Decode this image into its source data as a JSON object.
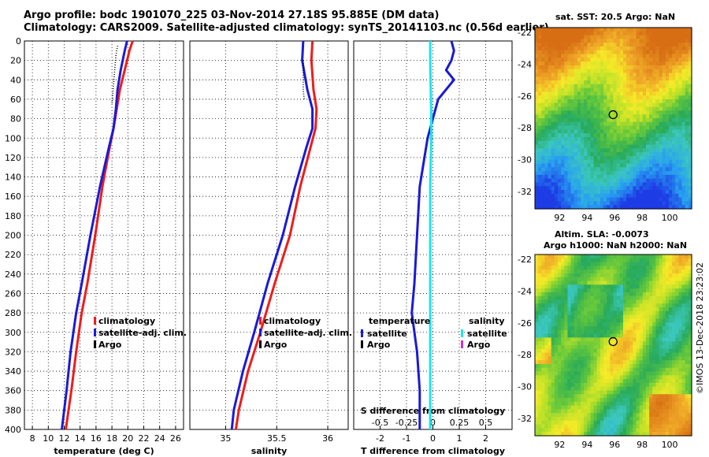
{
  "titles": {
    "line1": "Argo profile: bodc 1901070_225 03-Nov-2014 27.18S 95.885E (DM data)",
    "line2": "Climatology: CARS2009. Satellite-adjusted climatology: synTS_20141103.nc (0.56d earlier)"
  },
  "maps": {
    "sst_title": "sat. SST: 20.5 Argo: NaN",
    "sla_title1": "Altim. SLA: -0.0073",
    "sla_title2": "Argo h1000: NaN h2000: NaN"
  },
  "credit": "©IMOS 13-Dec-2018 23:23:02",
  "colors": {
    "climatology": "#ee1c1c",
    "satellite": "#1a1ad6",
    "argo": "#000000",
    "salinity_satellite": "#17e6ee",
    "salinity_argo": "#cc33cc"
  },
  "chart_data": [
    {
      "type": "line",
      "name": "temperature",
      "xlabel": "temperature (deg C)",
      "ylabel": "",
      "xlim": [
        7,
        27
      ],
      "ylim": [
        400,
        0
      ],
      "xticks": [
        8,
        10,
        12,
        14,
        16,
        18,
        20,
        22,
        24,
        26
      ],
      "yticks": [
        0,
        20,
        40,
        60,
        80,
        100,
        120,
        140,
        160,
        180,
        200,
        220,
        240,
        260,
        280,
        300,
        320,
        340,
        360,
        380,
        400
      ],
      "grid": true,
      "legend": {
        "placement": "lower-right",
        "labels": [
          "climatology",
          "satellite-adj. clim.",
          "Argo"
        ]
      },
      "series": [
        {
          "name": "climatology",
          "depth": [
            0,
            10,
            30,
            50,
            70,
            90,
            110,
            150,
            200,
            250,
            280,
            320,
            360,
            400
          ],
          "values": [
            20.6,
            20.2,
            19.6,
            19.0,
            18.6,
            18.2,
            17.7,
            16.8,
            15.9,
            14.9,
            14.2,
            13.5,
            12.9,
            12.2
          ]
        },
        {
          "name": "satellite-adj. clim.",
          "depth": [
            0,
            10,
            30,
            50,
            70,
            90,
            110,
            150,
            200,
            250,
            280,
            320,
            360,
            400
          ],
          "values": [
            19.9,
            19.6,
            19.1,
            18.7,
            18.5,
            18.2,
            17.6,
            16.5,
            15.3,
            14.2,
            13.5,
            12.8,
            12.3,
            11.7
          ]
        },
        {
          "name": "Argo",
          "depth": [
            5,
            15,
            25,
            35,
            45,
            55,
            65
          ],
          "values": [
            18.7,
            18.5,
            18.4,
            18.3,
            18.2,
            18.1,
            18.0
          ]
        }
      ]
    },
    {
      "type": "line",
      "name": "salinity",
      "xlabel": "salinity",
      "ylabel": "",
      "xlim": [
        34.65,
        36.2
      ],
      "ylim": [
        400,
        0
      ],
      "xticks": [
        35,
        35.5,
        36
      ],
      "grid": true,
      "legend": {
        "placement": "lower-right",
        "labels": [
          "climatology",
          "satellite-adj. clim.",
          "Argo"
        ]
      },
      "series": [
        {
          "name": "climatology",
          "depth": [
            0,
            20,
            50,
            70,
            90,
            110,
            150,
            200,
            250,
            300,
            340,
            380,
            400
          ],
          "values": [
            35.85,
            35.84,
            35.86,
            35.89,
            35.88,
            35.83,
            35.73,
            35.63,
            35.48,
            35.34,
            35.22,
            35.13,
            35.1
          ]
        },
        {
          "name": "satellite-adj. clim.",
          "depth": [
            0,
            20,
            50,
            70,
            90,
            110,
            150,
            200,
            250,
            300,
            340,
            380,
            400
          ],
          "values": [
            35.76,
            35.75,
            35.8,
            35.85,
            35.85,
            35.79,
            35.68,
            35.56,
            35.41,
            35.28,
            35.17,
            35.08,
            35.06
          ]
        },
        {
          "name": "Argo",
          "depth": [
            20,
            30,
            40,
            50,
            60
          ],
          "values": [
            35.76,
            35.76,
            35.76,
            35.76,
            35.77
          ]
        }
      ]
    },
    {
      "type": "line",
      "name": "difference",
      "xlabel": "T difference from climatology",
      "top_axis_label": "S difference from climatology",
      "xlim": [
        -3,
        3
      ],
      "ylim": [
        400,
        0
      ],
      "xticks": [
        -2,
        -1,
        0,
        1,
        2
      ],
      "xtick_labels": [
        "-2",
        "-1",
        "0",
        "1",
        "2"
      ],
      "secondary_xticks": [
        -0.5,
        -0.25,
        0,
        0.25,
        0.5
      ],
      "secondary_xtick_labels": [
        "-0.5",
        "-0.25",
        "0",
        "0.25",
        "0.5"
      ],
      "secondary_xlim": [
        -0.75,
        0.75
      ],
      "grid": true,
      "legend": {
        "placement": "lower-center",
        "groups": [
          {
            "title": "temperature",
            "labels": [
              "satellite",
              "Argo"
            ]
          },
          {
            "title": "salinity",
            "labels": [
              "satellite",
              "Argo"
            ]
          }
        ]
      },
      "series": [
        {
          "name": "temperature satellite",
          "depth": [
            0,
            10,
            20,
            30,
            40,
            60,
            80,
            100,
            150,
            200,
            250,
            280,
            320,
            360,
            400
          ],
          "values": [
            0.7,
            0.8,
            0.7,
            0.5,
            0.8,
            0.2,
            0.0,
            -0.2,
            -0.5,
            -0.6,
            -0.7,
            -0.8,
            -0.6,
            -0.5,
            -0.5
          ]
        },
        {
          "name": "salinity satellite",
          "depth": [
            0,
            20,
            50,
            80,
            100,
            150,
            200,
            250,
            300,
            350,
            400
          ],
          "values": [
            -0.025,
            -0.025,
            -0.02,
            -0.015,
            -0.015,
            -0.025,
            -0.025,
            -0.025,
            -0.025,
            -0.025,
            -0.025
          ]
        }
      ]
    },
    {
      "type": "heatmap",
      "name": "sst map",
      "title": "sat. SST: 20.5 Argo: NaN",
      "xlim": [
        90.2,
        101.6
      ],
      "ylim": [
        -33.1,
        -21.7
      ],
      "xticks": [
        92,
        94,
        96,
        98,
        100
      ],
      "yticks": [
        -22,
        -24,
        -26,
        -28,
        -30,
        -32
      ],
      "marker": {
        "lon": 95.885,
        "lat": -27.18
      }
    },
    {
      "type": "heatmap",
      "name": "sla map",
      "title": "Altim. SLA: -0.0073",
      "xlim": [
        90.2,
        101.6
      ],
      "ylim": [
        -33.1,
        -21.7
      ],
      "xticks": [
        92,
        94,
        96,
        98,
        100
      ],
      "yticks": [
        -22,
        -24,
        -26,
        -28,
        -30,
        -32
      ],
      "marker": {
        "lon": 95.885,
        "lat": -27.18
      }
    }
  ]
}
